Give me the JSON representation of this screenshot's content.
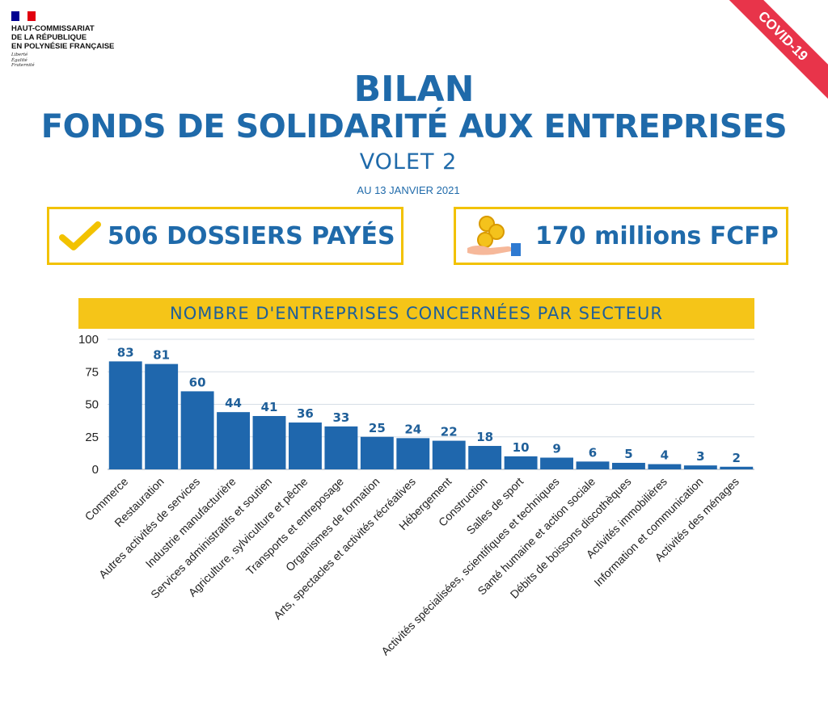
{
  "logo": {
    "lines": [
      "HAUT-COMMISSARIAT",
      "DE LA RÉPUBLIQUE",
      "EN POLYNÉSIE FRANÇAISE"
    ],
    "motto": [
      "Liberté",
      "Égalité",
      "Fraternité"
    ],
    "flag_colors": [
      "#000091",
      "#ffffff",
      "#e1000f"
    ]
  },
  "ribbon": "COVID-19",
  "title_line1": "BILAN",
  "title_line2": "FONDS DE SOLIDARITÉ AUX ENTREPRISES",
  "subtitle": "VOLET 2",
  "date": "AU 13 JANVIER 2021",
  "kpis": [
    {
      "icon": "check-icon",
      "text": "506 DOSSIERS PAYÉS"
    },
    {
      "icon": "coins-hand-icon",
      "text": "170 millions FCFP"
    }
  ],
  "colors": {
    "accent": "#1f6aaa",
    "bar": "#1f67ad",
    "banner": "#f5c518",
    "kpi_border": "#f2c200",
    "ribbon": "#e8344a"
  },
  "chart_data": {
    "type": "bar",
    "title": "NOMBRE D'ENTREPRISES CONCERNÉES PAR SECTEUR",
    "categories": [
      "Commerce",
      "Restauration",
      "Autres activités de services",
      "Industrie manufacturière",
      "Services administratifs et soutien",
      "Agriculture, sylviculture et pêche",
      "Transports et entreposage",
      "Organismes de formation",
      "Arts, spectacles et activités récréatives",
      "Hébergement",
      "Construction",
      "Salles de sport",
      "Activités spécialisées, scientifiques et techniques",
      "Santé humaine et action sociale",
      "Débits de boissons discothèques",
      "Activités immobilières",
      "Information et communication",
      "Activités des ménages"
    ],
    "values": [
      83,
      81,
      60,
      44,
      41,
      36,
      33,
      25,
      24,
      22,
      18,
      10,
      9,
      6,
      5,
      4,
      3,
      2
    ],
    "ylim": [
      0,
      100
    ],
    "yticks": [
      0,
      25,
      50,
      75,
      100
    ],
    "grid": true,
    "legend": "none"
  }
}
